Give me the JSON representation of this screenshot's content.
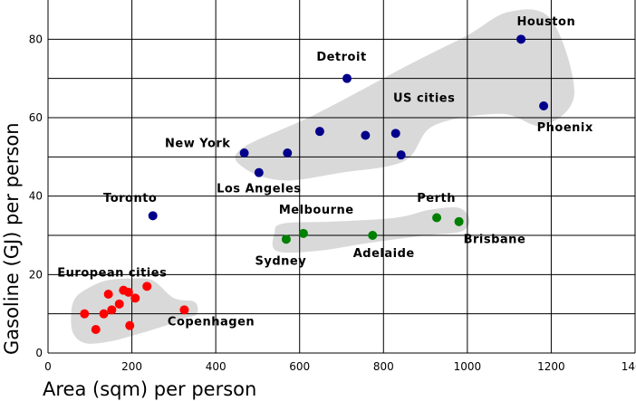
{
  "chart_data": {
    "type": "scatter",
    "title": "",
    "xlabel": "Area (sqm)  per person",
    "ylabel": "Gasoline (GJ) per person",
    "xlim": [
      0,
      1400
    ],
    "ylim": [
      0,
      90
    ],
    "x_ticks": [
      0,
      200,
      400,
      600,
      800,
      1000,
      1200,
      1400
    ],
    "y_ticks": [
      0,
      20,
      40,
      60,
      80
    ],
    "grid": true,
    "series": [
      {
        "color": "#00008b",
        "points": [
          {
            "x": 1128,
            "y": 80
          },
          {
            "x": 1182,
            "y": 63
          },
          {
            "x": 713,
            "y": 70
          },
          {
            "x": 468,
            "y": 51
          },
          {
            "x": 503,
            "y": 46
          },
          {
            "x": 571,
            "y": 51
          },
          {
            "x": 648,
            "y": 56.5
          },
          {
            "x": 757,
            "y": 55.5
          },
          {
            "x": 829,
            "y": 56
          },
          {
            "x": 842,
            "y": 50.5
          },
          {
            "x": 250,
            "y": 35
          }
        ]
      },
      {
        "color": "#008000",
        "points": [
          {
            "x": 568,
            "y": 29
          },
          {
            "x": 609,
            "y": 30.5
          },
          {
            "x": 774,
            "y": 30
          },
          {
            "x": 927,
            "y": 34.5
          },
          {
            "x": 980,
            "y": 33.5
          }
        ]
      },
      {
        "color": "#ff0000",
        "points": [
          {
            "x": 87,
            "y": 10
          },
          {
            "x": 114,
            "y": 6
          },
          {
            "x": 133,
            "y": 10
          },
          {
            "x": 144,
            "y": 15
          },
          {
            "x": 152,
            "y": 11
          },
          {
            "x": 170,
            "y": 12.5
          },
          {
            "x": 180,
            "y": 16
          },
          {
            "x": 192,
            "y": 15.5
          },
          {
            "x": 208,
            "y": 14
          },
          {
            "x": 195,
            "y": 7
          },
          {
            "x": 236,
            "y": 17
          },
          {
            "x": 325,
            "y": 11
          }
        ]
      }
    ],
    "annotations": [
      {
        "text": "Houston",
        "x": 1188,
        "y": 83.5
      },
      {
        "text": "Phoenix",
        "x": 1233,
        "y": 56.5
      },
      {
        "text": "Detroit",
        "x": 700,
        "y": 74.5
      },
      {
        "text": "US cities",
        "x": 897,
        "y": 64
      },
      {
        "text": "New York",
        "x": 357,
        "y": 52.5
      },
      {
        "text": "Los Angeles",
        "x": 503,
        "y": 41
      },
      {
        "text": "Toronto",
        "x": 196,
        "y": 38.5
      },
      {
        "text": "Melbourne",
        "x": 640,
        "y": 35.5
      },
      {
        "text": "Perth",
        "x": 926,
        "y": 38.5
      },
      {
        "text": "Brisbane",
        "x": 1065,
        "y": 28
      },
      {
        "text": "Sydney",
        "x": 555,
        "y": 22.5
      },
      {
        "text": "Adelaide",
        "x": 801,
        "y": 24.5
      },
      {
        "text": "European cities",
        "x": 153,
        "y": 19.5
      },
      {
        "text": "Copenhagen",
        "x": 389,
        "y": 7
      }
    ],
    "clusters": [
      {
        "name": "us",
        "points": [
          [
            460,
            52
          ],
          [
            640,
            61
          ],
          [
            870,
            74
          ],
          [
            1000,
            81
          ],
          [
            1100,
            87
          ],
          [
            1200,
            85
          ],
          [
            1255,
            66
          ],
          [
            1180,
            58
          ],
          [
            1080,
            61
          ],
          [
            920,
            58
          ],
          [
            850,
            49
          ],
          [
            700,
            46
          ],
          [
            560,
            44
          ],
          [
            470,
            47
          ]
        ]
      },
      {
        "name": "aus",
        "points": [
          [
            540,
            30.5
          ],
          [
            560,
            33
          ],
          [
            680,
            33.5
          ],
          [
            830,
            34.5
          ],
          [
            910,
            36.5
          ],
          [
            980,
            37
          ],
          [
            1005,
            34
          ],
          [
            985,
            31
          ],
          [
            900,
            30
          ],
          [
            760,
            28
          ],
          [
            640,
            26
          ],
          [
            545,
            26
          ]
        ]
      },
      {
        "name": "eu",
        "points": [
          [
            55,
            10
          ],
          [
            65,
            14
          ],
          [
            95,
            16.5
          ],
          [
            140,
            18.5
          ],
          [
            200,
            19
          ],
          [
            250,
            18.5
          ],
          [
            300,
            14
          ],
          [
            350,
            13
          ],
          [
            355,
            10
          ],
          [
            330,
            9
          ],
          [
            280,
            7
          ],
          [
            220,
            5
          ],
          [
            150,
            3
          ],
          [
            90,
            2.5
          ],
          [
            60,
            5
          ]
        ]
      }
    ],
    "cluster_color": "#d9d9d9"
  }
}
